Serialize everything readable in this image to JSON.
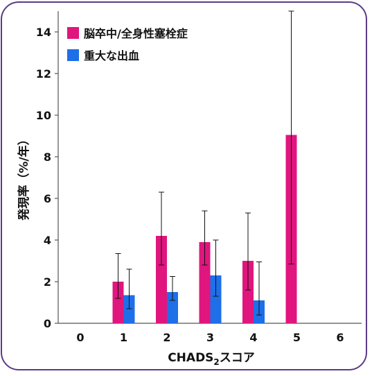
{
  "chart_data": {
    "type": "bar",
    "categories": [
      "0",
      "1",
      "2",
      "3",
      "4",
      "5",
      "6"
    ],
    "series": [
      {
        "name": "脳卒中/全身性塞栓症",
        "color": "#e0157e",
        "values": [
          null,
          2.0,
          4.2,
          3.9,
          3.0,
          9.05,
          null
        ],
        "error_low": [
          null,
          1.2,
          2.8,
          2.8,
          1.6,
          2.85,
          null
        ],
        "error_high": [
          null,
          3.35,
          6.3,
          5.4,
          5.3,
          15.0,
          null
        ]
      },
      {
        "name": "重大な出血",
        "color": "#1e6fe8",
        "values": [
          null,
          1.35,
          1.5,
          2.3,
          1.1,
          null,
          null
        ],
        "error_low": [
          null,
          0.7,
          1.1,
          1.3,
          0.4,
          null,
          null
        ],
        "error_high": [
          null,
          2.6,
          2.25,
          4.0,
          2.95,
          null,
          null
        ]
      }
    ],
    "xlabel_main": "CHADS",
    "xlabel_sub": "2",
    "xlabel_suffix": "スコア",
    "ylabel": "発現率（%/年）",
    "ylim": [
      0,
      15
    ],
    "yticks": [
      0,
      2,
      4,
      6,
      8,
      10,
      12,
      14
    ],
    "legend_position": "top-left",
    "grid": false
  }
}
